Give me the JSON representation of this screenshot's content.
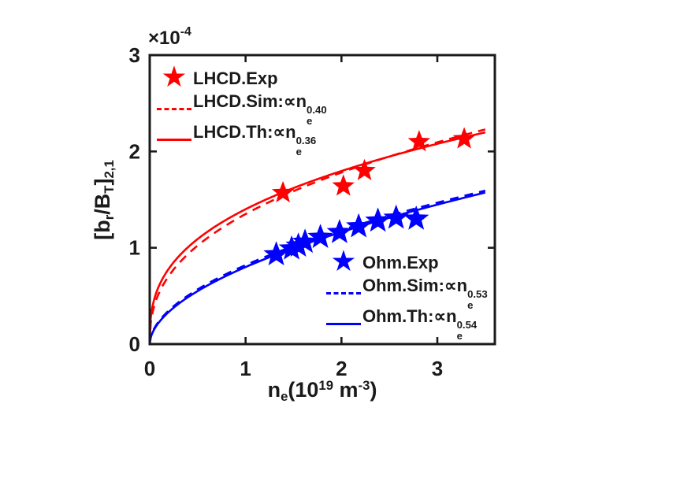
{
  "figure": {
    "background": "#ffffff"
  },
  "chart_data": {
    "type": "scatter",
    "title": "",
    "xlabel": "n_e(10^19 m^-3)",
    "ylabel": "[b_r/B_T]_2,1",
    "y_offset_label": "×10^-4",
    "xlim": [
      0,
      3.6
    ],
    "ylim": [
      0,
      3
    ],
    "xtick_values": [
      0,
      1,
      2,
      3
    ],
    "ytick_values": [
      0,
      1,
      2,
      3
    ],
    "xtick_labels": [
      "0",
      "1",
      "2",
      "3"
    ],
    "ytick_labels": [
      "0",
      "1",
      "2",
      "3"
    ],
    "grid": false,
    "box": true,
    "axis_color": "#1a1a1a",
    "lhcd_color": "#ff0000",
    "ohm_color": "#0000ff",
    "marker_sizes": {
      "lhcd_star_radius": 15,
      "ohm_star_radius": 17
    },
    "series": [
      {
        "name": "LHCD.Exp",
        "type": "scatter",
        "marker": "star",
        "color": "#ff0000",
        "points": [
          [
            1.39,
            1.57
          ],
          [
            2.02,
            1.64
          ],
          [
            2.24,
            1.8
          ],
          [
            2.81,
            2.1
          ],
          [
            3.28,
            2.13
          ]
        ]
      },
      {
        "name": "LHCD.Sim",
        "type": "power_law",
        "line_style": "dashed",
        "color": "#ff0000",
        "coefficient": 1.35,
        "exponent": 0.4,
        "x_range": [
          0,
          3.5
        ]
      },
      {
        "name": "LHCD.Th",
        "type": "power_law",
        "line_style": "solid",
        "color": "#ff0000",
        "coefficient": 1.4,
        "exponent": 0.36,
        "x_range": [
          0,
          3.5
        ]
      },
      {
        "name": "Ohm.Exp",
        "type": "scatter",
        "marker": "star",
        "color": "#0000ff",
        "points": [
          [
            1.32,
            0.93
          ],
          [
            1.48,
            0.99
          ],
          [
            1.55,
            1.02
          ],
          [
            1.62,
            1.06
          ],
          [
            1.78,
            1.11
          ],
          [
            1.98,
            1.16
          ],
          [
            2.18,
            1.22
          ],
          [
            2.38,
            1.28
          ],
          [
            2.57,
            1.31
          ],
          [
            2.78,
            1.3
          ]
        ]
      },
      {
        "name": "Ohm.Sim",
        "type": "power_law",
        "line_style": "dashed",
        "color": "#0000ff",
        "coefficient": 0.82,
        "exponent": 0.53,
        "x_range": [
          0,
          3.5
        ]
      },
      {
        "name": "Ohm.Th",
        "type": "power_law",
        "line_style": "solid",
        "color": "#0000ff",
        "coefficient": 0.8,
        "exponent": 0.54,
        "x_range": [
          0,
          3.5
        ]
      }
    ],
    "legends": [
      {
        "group": "LHCD",
        "position": "top-left",
        "border": "none",
        "items": [
          {
            "key": "star",
            "glyph": "★",
            "label": "LHCD.Exp"
          },
          {
            "key": "dashed",
            "prefix": "LHCD.Sim:∝n",
            "sub": "e",
            "sup": "0.40"
          },
          {
            "key": "solid",
            "prefix": "LHCD.Th:∝n",
            "sub": "e",
            "sup": "0.36"
          }
        ]
      },
      {
        "group": "Ohm",
        "position": "center-right",
        "border": "none",
        "items": [
          {
            "key": "star",
            "glyph": "★",
            "label": "Ohm.Exp"
          },
          {
            "key": "dashed",
            "prefix": "Ohm.Sim:∝n",
            "sub": "e",
            "sup": "0.53"
          },
          {
            "key": "solid",
            "prefix": "Ohm.Th:∝n",
            "sub": "e",
            "sup": "0.54"
          }
        ]
      }
    ],
    "labels": {
      "offset_base": "×10",
      "offset_sup": "-4",
      "y_p1": "[b",
      "y_s1": "r",
      "y_p2": "/B",
      "y_s2": "T",
      "y_p3": "]",
      "y_s3": "2,1",
      "x_p1": "n",
      "x_s1": "e",
      "x_p2": "(10",
      "x_sup1": "19",
      "x_p3": " m",
      "x_sup2": "-3",
      "x_p4": ")"
    }
  }
}
